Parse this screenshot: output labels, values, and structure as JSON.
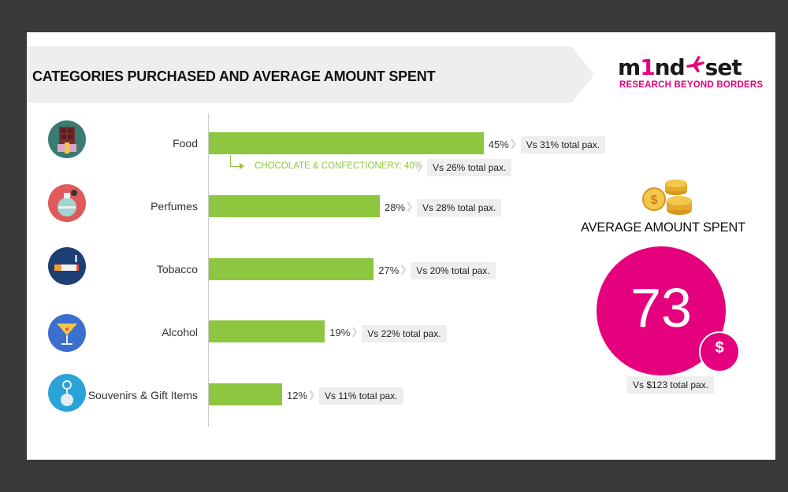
{
  "header": {
    "title": "CATEGORIES PURCHASED AND AVERAGE AMOUNT SPENT"
  },
  "logo": {
    "part1": "m",
    "part2": "1",
    "part3": "nd",
    "part4": "set",
    "tagline": "RESEARCH BEYOND BORDERS"
  },
  "chart_data": {
    "type": "bar",
    "orientation": "horizontal",
    "categories": [
      "Food",
      "Perfumes",
      "Tobacco",
      "Alcohol",
      "Souvenirs & Gift Items"
    ],
    "values": [
      45,
      28,
      27,
      19,
      12
    ],
    "value_labels": [
      "45%",
      "28%",
      "27%",
      "19%",
      "12%"
    ],
    "comparisons": [
      "Vs 31% total pax.",
      "Vs 28% total pax.",
      "Vs 20% total pax.",
      "Vs 22% total pax.",
      "Vs 11% total pax."
    ],
    "xlim": [
      0,
      100
    ],
    "bar_color": "#8dc63f",
    "annotations": [
      {
        "category": "Food",
        "label": "CHOCOLATE & CONFECTIONERY: 40%",
        "value": 40,
        "comparison": "Vs 26% total pax."
      }
    ],
    "icons": [
      "chocolate-icon",
      "perfume-icon",
      "cigarette-icon",
      "cocktail-icon",
      "keychain-icon"
    ]
  },
  "average": {
    "title": "AVERAGE AMOUNT SPENT",
    "value": "73",
    "currency": "$",
    "comparison": "Vs $123 total pax.",
    "icon": "coins-icon"
  },
  "colors": {
    "accent": "#e5007d",
    "bar": "#8dc63f"
  }
}
